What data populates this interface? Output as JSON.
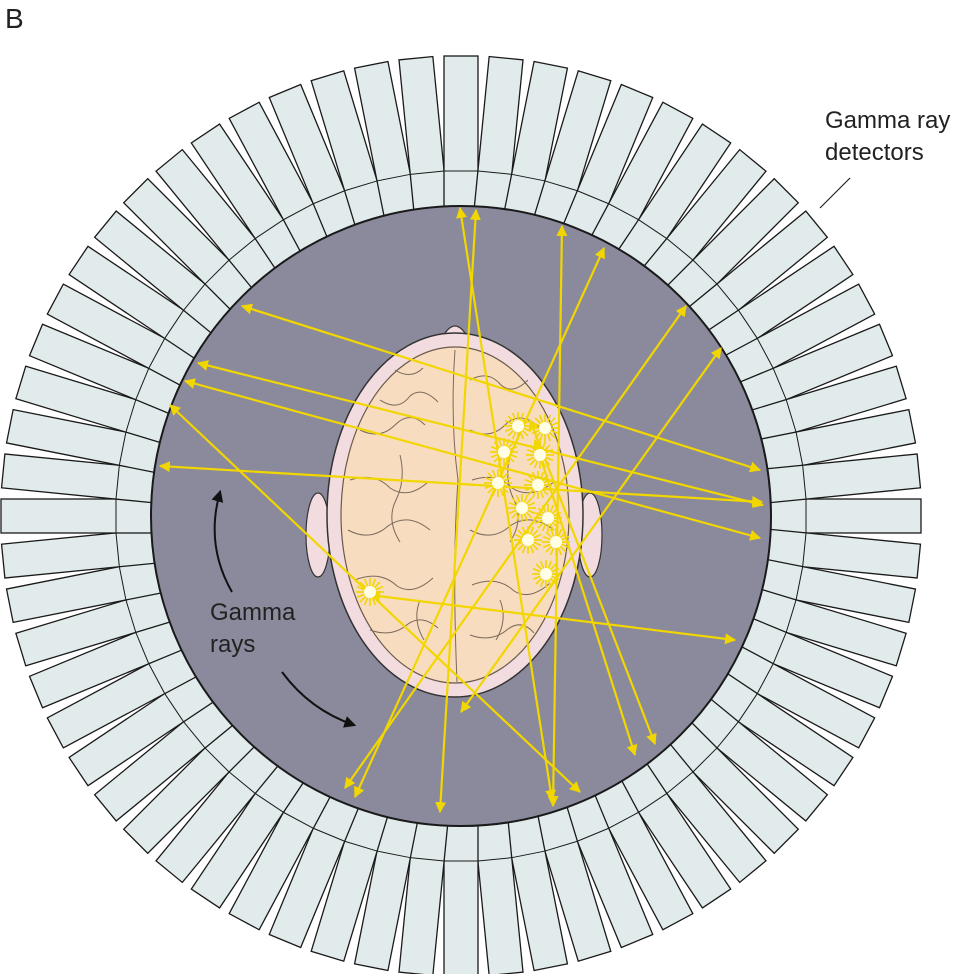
{
  "panel_label": "B",
  "detector_label": {
    "line1": "Gamma ray",
    "line2": "detectors"
  },
  "rays_label": {
    "line1": "Gamma",
    "line2": "rays"
  },
  "colors": {
    "detector_fill": "#e2ebeb",
    "detector_stroke": "#1a1a1a",
    "ring_fill": "#8a8a9c",
    "head_fill": "#f3dcdf",
    "brain_fill": "#f8dcc0",
    "sulci_stroke": "#7a6a5a",
    "ray_color": "#f2d600",
    "burst_color": "#ffffe6",
    "text_color": "#222222"
  },
  "detector_count": 64,
  "icons": [
    "annihilation-burst-icon",
    "curved-arrow-icon"
  ]
}
